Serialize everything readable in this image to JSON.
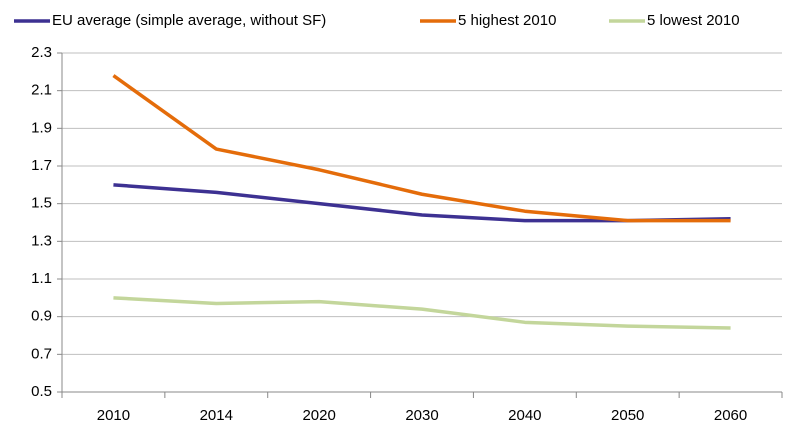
{
  "chart_data": {
    "type": "line",
    "categories": [
      "2010",
      "2014",
      "2020",
      "2030",
      "2040",
      "2050",
      "2060"
    ],
    "series": [
      {
        "name": "EU average (simple average, without SF)",
        "color": "#3d3192",
        "values": [
          1.6,
          1.56,
          1.5,
          1.44,
          1.41,
          1.41,
          1.42
        ]
      },
      {
        "name": "5 highest 2010",
        "color": "#e46c0a",
        "values": [
          2.18,
          1.79,
          1.68,
          1.55,
          1.46,
          1.41,
          1.41
        ]
      },
      {
        "name": "5 lowest 2010",
        "color": "#c3d69b",
        "values": [
          1.0,
          0.97,
          0.98,
          0.94,
          0.87,
          0.85,
          0.84
        ]
      }
    ],
    "ylim": [
      0.5,
      2.3
    ],
    "yticks": [
      0.5,
      0.7,
      0.9,
      1.1,
      1.3,
      1.5,
      1.7,
      1.9,
      2.1,
      2.3
    ],
    "grid": true,
    "legend": "top"
  }
}
